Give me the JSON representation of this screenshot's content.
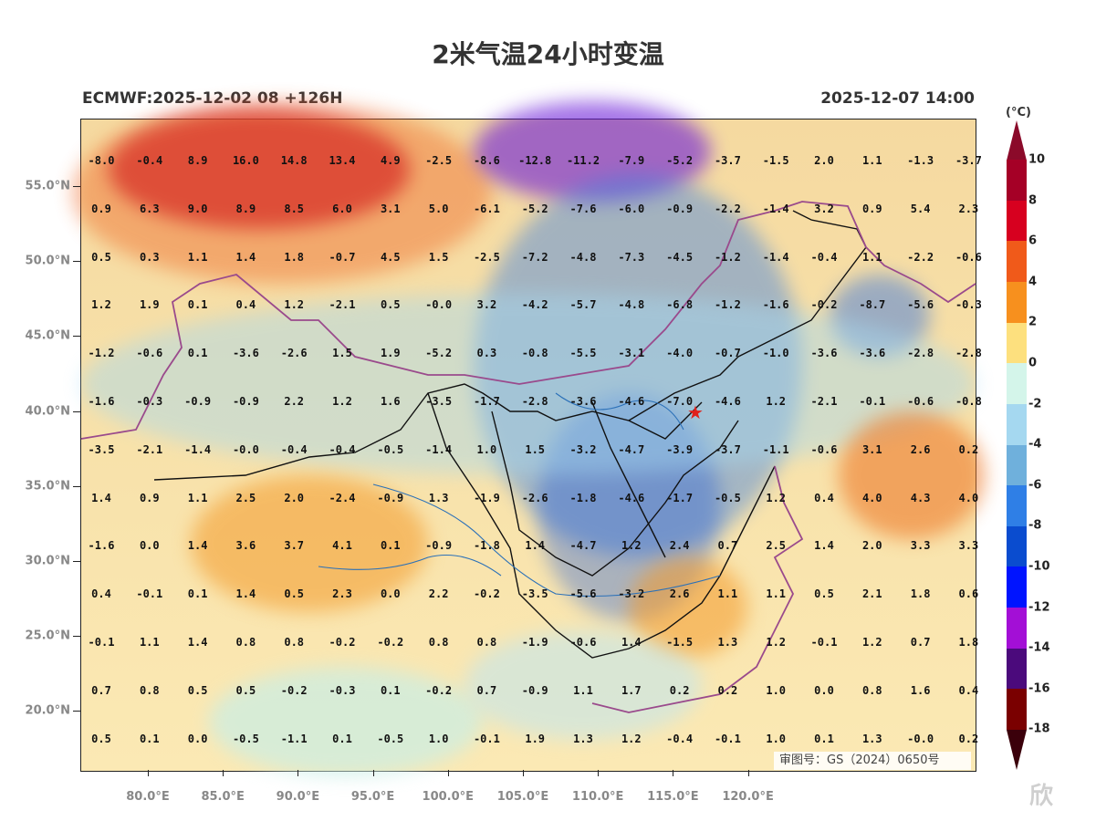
{
  "title": "2米气温24小时变温",
  "subtitle_left": "ECMWF:2025-12-02 08 +126H",
  "subtitle_right": "2025-12-07 14:00",
  "approval_number": "审图号：GS（2024）0650号",
  "watermark": "欣",
  "colorbar": {
    "unit": "(°C)",
    "labels": [
      "10",
      "8",
      "6",
      "4",
      "2",
      "0",
      "-2",
      "-4",
      "-6",
      "-8",
      "-10",
      "-12",
      "-14",
      "-16",
      "-18"
    ],
    "colors": [
      "#a50026",
      "#d7001f",
      "#f05a1a",
      "#f7901e",
      "#fde07e",
      "#d4f5ea",
      "#a5d8f0",
      "#6fb0dc",
      "#2f7fe6",
      "#0a4ccf",
      "#0014ff",
      "#a30fd6",
      "#4b0a7c",
      "#7a0000"
    ]
  },
  "axes": {
    "y_labels": [
      "55.0°N",
      "50.0°N",
      "45.0°N",
      "40.0°N",
      "35.0°N",
      "30.0°N",
      "25.0°N",
      "20.0°N"
    ],
    "x_labels": [
      "80.0°E",
      "85.0°E",
      "90.0°E",
      "95.0°E",
      "100.0°E",
      "105.0°E",
      "110.0°E",
      "115.0°E",
      "120.0°E"
    ]
  },
  "grid_values": [
    [
      "-8.0",
      "-0.4",
      "8.9",
      "16.0",
      "14.8",
      "13.4",
      "4.9",
      "-2.5",
      "-8.6",
      "-12.8",
      "-11.2",
      "-7.9",
      "-5.2",
      "-3.7",
      "-1.5",
      "2.0",
      "1.1",
      "-1.3",
      "-3.7"
    ],
    [
      "0.9",
      "6.3",
      "9.0",
      "8.9",
      "8.5",
      "6.0",
      "3.1",
      "5.0",
      "-6.1",
      "-5.2",
      "-7.6",
      "-6.0",
      "-0.9",
      "-2.2",
      "-1.4",
      "3.2",
      "0.9",
      "5.4",
      "2.3"
    ],
    [
      "0.5",
      "0.3",
      "1.1",
      "1.4",
      "1.8",
      "-0.7",
      "4.5",
      "1.5",
      "-2.5",
      "-7.2",
      "-4.8",
      "-7.3",
      "-4.5",
      "-1.2",
      "-1.4",
      "-0.4",
      "1.1",
      "-2.2",
      "-0.6"
    ],
    [
      "1.2",
      "1.9",
      "0.1",
      "0.4",
      "1.2",
      "-2.1",
      "0.5",
      "-0.0",
      "3.2",
      "-4.2",
      "-5.7",
      "-4.8",
      "-6.8",
      "-1.2",
      "-1.6",
      "-0.2",
      "-8.7",
      "-5.6",
      "-0.3"
    ],
    [
      "-1.2",
      "-0.6",
      "0.1",
      "-3.6",
      "-2.6",
      "1.5",
      "1.9",
      "-5.2",
      "0.3",
      "-0.8",
      "-5.5",
      "-3.1",
      "-4.0",
      "-0.7",
      "-1.0",
      "-3.6",
      "-3.6",
      "-2.8",
      "-2.8"
    ],
    [
      "-1.6",
      "-0.3",
      "-0.9",
      "-0.9",
      "2.2",
      "1.2",
      "1.6",
      "-3.5",
      "-1.7",
      "-2.8",
      "-3.6",
      "-4.6",
      "-7.0",
      "-4.6",
      "1.2",
      "-2.1",
      "-0.1",
      "-0.6",
      "-0.8"
    ],
    [
      "-3.5",
      "-2.1",
      "-1.4",
      "-0.0",
      "-0.4",
      "-0.4",
      "-0.5",
      "-1.4",
      "1.0",
      "1.5",
      "-3.2",
      "-4.7",
      "-3.9",
      "-3.7",
      "-1.1",
      "-0.6",
      "3.1",
      "2.6",
      "0.2"
    ],
    [
      "1.4",
      "0.9",
      "1.1",
      "2.5",
      "2.0",
      "-2.4",
      "-0.9",
      "1.3",
      "-1.9",
      "-2.6",
      "-1.8",
      "-4.6",
      "-1.7",
      "-0.5",
      "1.2",
      "0.4",
      "4.0",
      "4.3",
      "4.0"
    ],
    [
      "-1.6",
      "0.0",
      "1.4",
      "3.6",
      "3.7",
      "4.1",
      "0.1",
      "-0.9",
      "-1.8",
      "1.4",
      "-4.7",
      "1.2",
      "2.4",
      "0.7",
      "2.5",
      "1.4",
      "2.0",
      "3.3",
      "3.3"
    ],
    [
      "0.4",
      "-0.1",
      "0.1",
      "1.4",
      "0.5",
      "2.3",
      "0.0",
      "2.2",
      "-0.2",
      "-3.5",
      "-5.6",
      "-3.2",
      "2.6",
      "1.1",
      "1.1",
      "0.5",
      "2.1",
      "1.8",
      "0.6"
    ],
    [
      "-0.1",
      "1.1",
      "1.4",
      "0.8",
      "0.8",
      "-0.2",
      "-0.2",
      "0.8",
      "0.8",
      "-1.9",
      "-0.6",
      "1.4",
      "-1.5",
      "1.3",
      "1.2",
      "-0.1",
      "1.2",
      "0.7",
      "1.8"
    ],
    [
      "0.7",
      "0.8",
      "0.5",
      "0.5",
      "-0.2",
      "-0.3",
      "0.1",
      "-0.2",
      "0.7",
      "-0.9",
      "1.1",
      "1.7",
      "0.2",
      "0.2",
      "1.0",
      "0.0",
      "0.8",
      "1.6",
      "0.4"
    ],
    [
      "0.5",
      "0.1",
      "0.0",
      "-0.5",
      "-1.1",
      "0.1",
      "-0.5",
      "1.0",
      "-0.1",
      "1.9",
      "1.3",
      "1.2",
      "-0.4",
      "-0.1",
      "1.0",
      "0.1",
      "1.3",
      "-0.0",
      "0.2"
    ]
  ]
}
